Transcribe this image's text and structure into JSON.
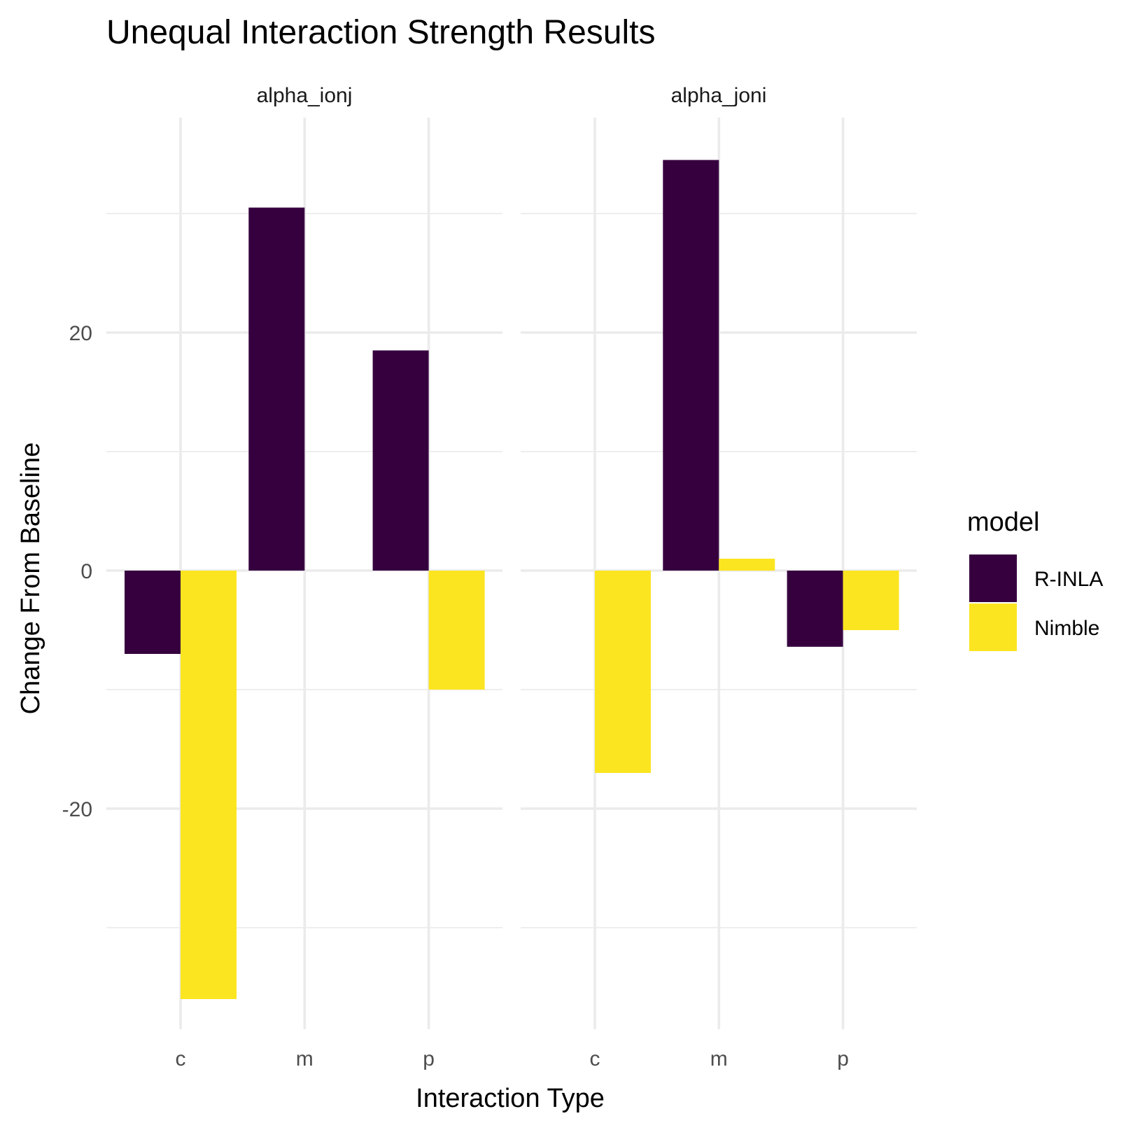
{
  "chart_data": {
    "type": "bar",
    "title": "Unequal Interaction Strength Results",
    "xlabel": "Interaction Type",
    "ylabel": "Change From Baseline",
    "ylim": [
      -40,
      40
    ],
    "yticks": [
      -20,
      0,
      20
    ],
    "ytick_labels": [
      "-20",
      "0",
      "20"
    ],
    "categories": [
      "c",
      "m",
      "p"
    ],
    "facets": [
      "alpha_ionj",
      "alpha_joni"
    ],
    "grid": true,
    "legend": {
      "title": "model",
      "position": "right",
      "entries": [
        {
          "name": "R-INLA",
          "color": "#36003f"
        },
        {
          "name": "Nimble",
          "color": "#fbe520"
        }
      ]
    },
    "panels": [
      {
        "facet": "alpha_ionj",
        "series": [
          {
            "name": "R-INLA",
            "values": [
              -7,
              30.5,
              18.5
            ]
          },
          {
            "name": "Nimble",
            "values": [
              -36,
              0,
              -10
            ]
          }
        ]
      },
      {
        "facet": "alpha_joni",
        "series": [
          {
            "name": "R-INLA",
            "values": [
              0,
              34.5,
              -6.4
            ]
          },
          {
            "name": "Nimble",
            "values": [
              -17,
              1,
              -5
            ]
          }
        ]
      }
    ]
  }
}
